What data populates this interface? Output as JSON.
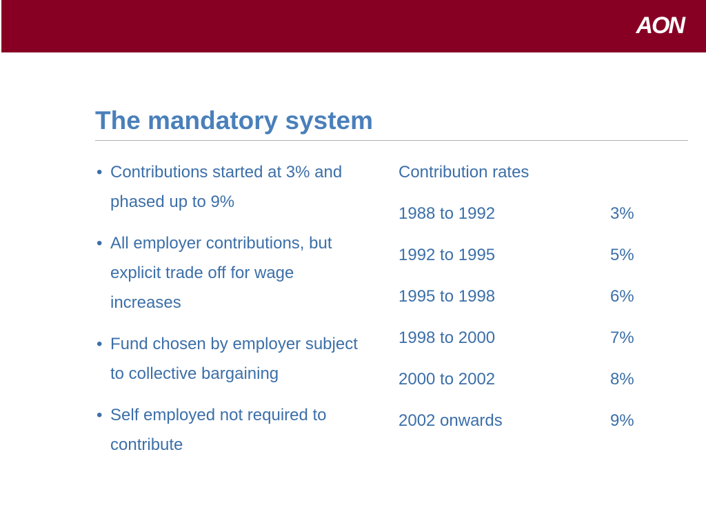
{
  "header": {
    "logo": "AON"
  },
  "title": "The mandatory system",
  "bullets": [
    "Contributions started at 3% and phased up to 9%",
    "All employer contributions, but explicit trade off for wage increases",
    "Fund chosen by employer subject to collective bargaining",
    "Self employed not required to contribute"
  ],
  "table": {
    "caption": "Contribution rates",
    "rows": [
      [
        "1988 to 1992",
        "3%"
      ],
      [
        "1992 to 1995",
        "5%"
      ],
      [
        "1995 to 1998",
        "6%"
      ],
      [
        "1998 to 2000",
        "7%"
      ],
      [
        "2000 to 2002",
        "8%"
      ],
      [
        "2002 onwards",
        "9%"
      ]
    ]
  }
}
